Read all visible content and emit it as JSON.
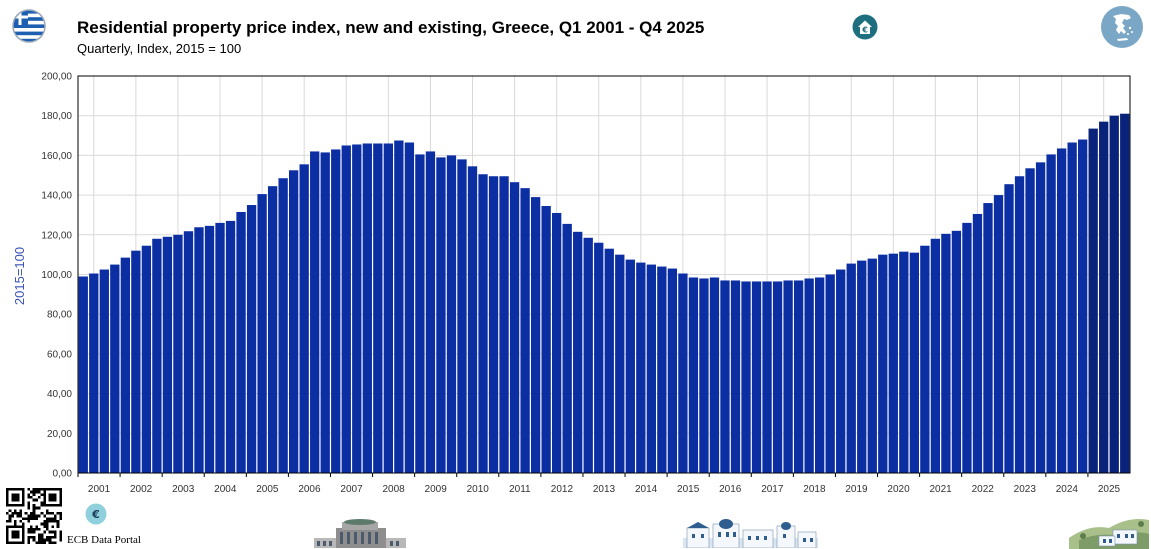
{
  "header": {
    "title": "Residential property price index, new and existing, Greece, Q1 2001 - Q4 2025",
    "subtitle": "Quarterly, Index, 2015 = 100"
  },
  "footer": {
    "portal_label": "ECB Data Portal"
  },
  "icons": {
    "flag": "greece-flag-icon",
    "house": "house-euro-icon",
    "map": "greece-map-icon",
    "qr": "qr-code-icon",
    "euro": "euro-badge-icon"
  },
  "colors": {
    "bar": "#0b2fa3",
    "bar_highlight": "#0a237a",
    "grid": "#d9d9d9",
    "axis": "#000000",
    "ylabel": "#3b53b8",
    "icon_teal": "#1d6f80",
    "map_circle": "#7aa7c6"
  },
  "chart_data": {
    "type": "bar",
    "ylabel": "2015=100",
    "ylim": [
      0,
      200
    ],
    "ytick_labels": [
      "0,00",
      "20,00",
      "40,00",
      "60,00",
      "80,00",
      "100,00",
      "120,00",
      "140,00",
      "160,00",
      "180,00",
      "200,00"
    ],
    "xtick_labels": [
      "2001",
      "2002",
      "2003",
      "2004",
      "2005",
      "2006",
      "2007",
      "2008",
      "2009",
      "2010",
      "2011",
      "2012",
      "2013",
      "2014",
      "2015",
      "2016",
      "2017",
      "2018",
      "2019",
      "2020",
      "2021",
      "2022",
      "2023",
      "2024",
      "2025"
    ],
    "grid": true,
    "start": "2001 Q1",
    "highlight_from": "2025 Q1",
    "series": [
      {
        "values": [
          99.0,
          100.5,
          102.5,
          105.0,
          108.5,
          112.0,
          114.5,
          118.0,
          119.0,
          120.0,
          121.8,
          123.8,
          124.5,
          126.0,
          127.0,
          131.5,
          135.0,
          140.5,
          144.5,
          148.5,
          152.5,
          155.5,
          162.0,
          161.5,
          163.0,
          165.0,
          165.5,
          166.0,
          166.0,
          166.0,
          167.5,
          166.5,
          160.5,
          162.0,
          159.0,
          160.0,
          158.0,
          154.5,
          150.5,
          149.5,
          149.5,
          146.5,
          143.5,
          139.0,
          134.5,
          131.0,
          125.5,
          121.5,
          118.5,
          116.0,
          113.0,
          110.0,
          107.5,
          106.0,
          105.0,
          104.0,
          103.0,
          100.5,
          98.5,
          98.0,
          98.5,
          97.0,
          97.0,
          96.5,
          96.5,
          96.5,
          96.5,
          97.0,
          97.0,
          98.0,
          98.5,
          100.0,
          102.5,
          105.5,
          107.0,
          108.0,
          110.0,
          110.5,
          111.5,
          111.0,
          114.5,
          118.0,
          120.5,
          122.0,
          126.0,
          130.5,
          136.0,
          140.0,
          145.5,
          149.5,
          153.5,
          156.5,
          160.5,
          163.5,
          166.5,
          168.0,
          173.5,
          177.0,
          180.0,
          181.0
        ]
      }
    ]
  }
}
